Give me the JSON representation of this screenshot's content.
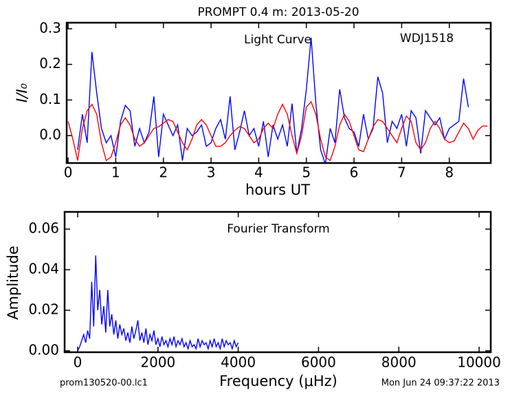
{
  "chart_data": [
    {
      "type": "line",
      "title": "PROMPT 0.4 m:  2013-05-20",
      "annotations": [
        "Light Curve",
        "WDJ1518"
      ],
      "xlabel": "hours UT",
      "ylabel": "I/I₀",
      "xlim": [
        -0.03,
        8.87
      ],
      "ylim": [
        -0.077,
        0.317
      ],
      "xticks": [
        0,
        1,
        2,
        3,
        4,
        5,
        6,
        7,
        8
      ],
      "yticks": [
        {
          "value": 0,
          "label": "0.0"
        },
        0.1,
        0.2,
        0.3
      ],
      "series": [
        {
          "color": "#0000ff",
          "x": [
            0.2,
            0.3,
            0.4,
            0.5,
            0.6,
            0.7,
            0.8,
            0.9,
            1.0,
            1.1,
            1.2,
            1.3,
            1.4,
            1.5,
            1.6,
            1.7,
            1.8,
            1.9,
            2.0,
            2.1,
            2.2,
            2.3,
            2.4,
            2.5,
            2.6,
            2.7,
            2.8,
            2.9,
            3.0,
            3.1,
            3.2,
            3.3,
            3.4,
            3.5,
            3.6,
            3.7,
            3.8,
            3.9,
            4.0,
            4.1,
            4.2,
            4.3,
            4.4,
            4.5,
            4.6,
            4.7,
            4.8,
            4.9,
            5.0,
            5.1,
            5.2,
            5.3,
            5.4,
            5.5,
            5.6,
            5.7,
            5.8,
            5.9,
            6.0,
            6.1,
            6.2,
            6.3,
            6.4,
            6.5,
            6.6,
            6.7,
            6.8,
            6.9,
            7.0,
            7.1,
            7.2,
            7.3,
            7.4,
            7.5,
            7.6,
            7.7,
            7.8,
            7.9,
            8.0,
            8.1,
            8.2,
            8.3,
            8.4
          ],
          "values": [
            -0.04,
            0.06,
            -0.02,
            0.235,
            0.12,
            0.02,
            -0.02,
            0.0,
            -0.06,
            0.04,
            0.085,
            0.07,
            -0.03,
            0.02,
            -0.02,
            0.01,
            0.11,
            -0.06,
            0.06,
            0.03,
            0.0,
            0.03,
            -0.07,
            0.02,
            0.0,
            0.01,
            0.03,
            -0.03,
            -0.02,
            0.02,
            0.045,
            -0.01,
            0.11,
            -0.04,
            0.01,
            0.07,
            0.0,
            0.02,
            -0.03,
            0.04,
            -0.06,
            0.03,
            -0.01,
            0.03,
            -0.03,
            0.09,
            -0.05,
            0.02,
            0.13,
            0.275,
            0.09,
            -0.04,
            -0.08,
            0.02,
            -0.02,
            0.13,
            0.05,
            0.02,
            0.01,
            -0.03,
            0.06,
            -0.01,
            0.02,
            0.165,
            0.12,
            -0.02,
            0.04,
            0.02,
            0.06,
            -0.03,
            0.07,
            0.05,
            -0.05,
            0.07,
            0.05,
            0.03,
            0.05,
            -0.01,
            0.02,
            0.03,
            0.04,
            0.16,
            0.08
          ]
        },
        {
          "color": "#ff0000",
          "x": [
            0.0,
            0.1,
            0.2,
            0.3,
            0.4,
            0.5,
            0.6,
            0.7,
            0.8,
            0.9,
            1.0,
            1.1,
            1.2,
            1.3,
            1.4,
            1.5,
            1.6,
            1.7,
            1.8,
            1.9,
            2.0,
            2.1,
            2.2,
            2.3,
            2.4,
            2.5,
            2.6,
            2.7,
            2.8,
            2.9,
            3.0,
            3.1,
            3.2,
            3.3,
            3.4,
            3.5,
            3.6,
            3.7,
            3.8,
            3.9,
            4.0,
            4.1,
            4.2,
            4.3,
            4.4,
            4.5,
            4.6,
            4.7,
            4.8,
            4.9,
            5.0,
            5.1,
            5.2,
            5.3,
            5.4,
            5.5,
            5.6,
            5.7,
            5.8,
            5.9,
            6.0,
            6.1,
            6.2,
            6.3,
            6.4,
            6.5,
            6.6,
            6.7,
            6.8,
            6.9,
            7.0,
            7.1,
            7.2,
            7.3,
            7.4,
            7.5,
            7.6,
            7.7,
            7.8,
            7.9,
            8.0,
            8.1,
            8.2,
            8.3,
            8.4,
            8.5,
            8.6,
            8.7,
            8.8
          ],
          "values": [
            0.04,
            -0.01,
            -0.07,
            0.02,
            0.07,
            0.088,
            0.06,
            -0.02,
            -0.07,
            -0.06,
            -0.02,
            0.03,
            0.05,
            0.03,
            -0.01,
            -0.03,
            -0.02,
            0.0,
            0.02,
            0.025,
            0.035,
            0.045,
            0.04,
            0.01,
            -0.02,
            -0.04,
            -0.01,
            0.03,
            0.045,
            0.03,
            0.0,
            -0.03,
            -0.03,
            -0.02,
            0.0,
            0.015,
            0.025,
            0.02,
            0.0,
            -0.02,
            -0.01,
            0.02,
            0.035,
            0.02,
            0.06,
            0.088,
            0.06,
            0.0,
            -0.05,
            0.0,
            0.08,
            0.095,
            0.06,
            -0.01,
            -0.06,
            -0.07,
            -0.03,
            0.03,
            0.06,
            0.04,
            0.0,
            -0.04,
            -0.045,
            -0.01,
            0.025,
            0.045,
            0.04,
            0.02,
            0.0,
            -0.02,
            0.02,
            0.055,
            0.04,
            -0.02,
            -0.04,
            -0.02,
            0.02,
            0.04,
            0.02,
            -0.01,
            -0.02,
            -0.015,
            0.01,
            0.035,
            0.02,
            -0.01,
            0.015,
            0.027,
            0.027
          ]
        }
      ]
    },
    {
      "type": "line",
      "annotations": [
        "Fourier Transform"
      ],
      "xlabel": "Frequency (μHz)",
      "ylabel": "Amplitude",
      "xlim": [
        -325,
        10290
      ],
      "ylim": [
        -0.0007,
        0.0685
      ],
      "xticks": [
        0,
        2000,
        4000,
        6000,
        8000,
        10000
      ],
      "yticks": [
        {
          "value": 0,
          "label": "0.00"
        },
        {
          "value": 0.02,
          "label": "0.02"
        },
        {
          "value": 0.04,
          "label": "0.04"
        },
        {
          "value": 0.06,
          "label": "0.06"
        }
      ],
      "series": [
        {
          "color": "#0000ff",
          "x": [
            0,
            50,
            100,
            150,
            200,
            250,
            300,
            350,
            400,
            450,
            500,
            550,
            600,
            650,
            700,
            750,
            800,
            850,
            900,
            950,
            1000,
            1050,
            1100,
            1150,
            1200,
            1250,
            1300,
            1350,
            1400,
            1450,
            1500,
            1550,
            1600,
            1650,
            1700,
            1750,
            1800,
            1850,
            1900,
            1950,
            2000,
            2050,
            2100,
            2150,
            2200,
            2250,
            2300,
            2350,
            2400,
            2450,
            2500,
            2550,
            2600,
            2650,
            2700,
            2750,
            2800,
            2850,
            2900,
            2950,
            3000,
            3050,
            3100,
            3150,
            3200,
            3250,
            3300,
            3350,
            3400,
            3450,
            3500,
            3550,
            3600,
            3650,
            3700,
            3750,
            3800,
            3850,
            3900,
            3950,
            4000
          ],
          "values": [
            0.0,
            0.002,
            0.005,
            0.008,
            0.004,
            0.01,
            0.006,
            0.034,
            0.012,
            0.047,
            0.02,
            0.03,
            0.013,
            0.022,
            0.009,
            0.03,
            0.012,
            0.018,
            0.008,
            0.015,
            0.006,
            0.013,
            0.008,
            0.011,
            0.005,
            0.009,
            0.004,
            0.012,
            0.006,
            0.01,
            0.015,
            0.005,
            0.009,
            0.004,
            0.011,
            0.003,
            0.008,
            0.005,
            0.01,
            0.003,
            0.006,
            0.002,
            0.007,
            0.003,
            0.005,
            0.002,
            0.006,
            0.003,
            0.007,
            0.002,
            0.005,
            0.003,
            0.006,
            0.002,
            0.004,
            0.001,
            0.005,
            0.002,
            0.003,
            0.001,
            0.006,
            0.002,
            0.005,
            0.003,
            0.004,
            0.001,
            0.005,
            0.002,
            0.006,
            0.002,
            0.004,
            0.001,
            0.006,
            0.002,
            0.005,
            0.003,
            0.004,
            0.001,
            0.005,
            0.002,
            0.004
          ]
        }
      ]
    }
  ],
  "footer": {
    "left": "prom130520-00.lc1",
    "right": "Mon Jun 24 09:37:22 2013"
  }
}
